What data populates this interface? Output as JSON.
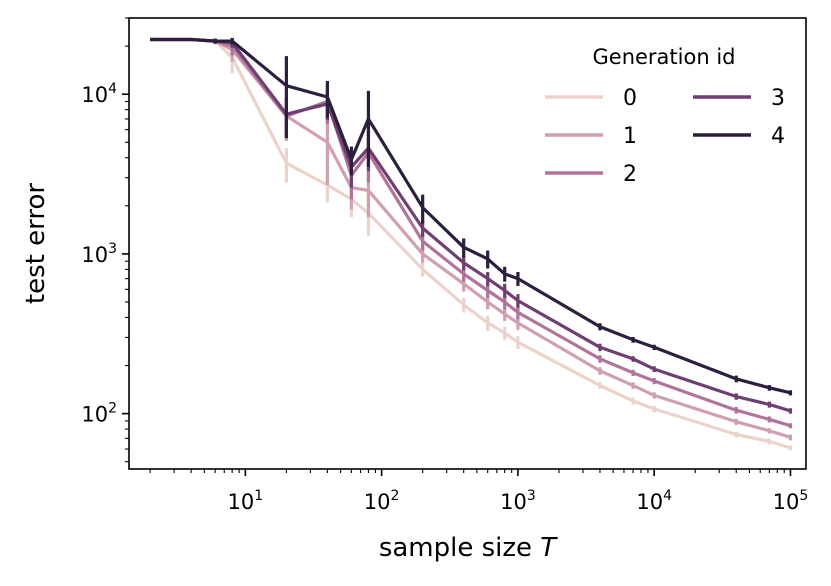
{
  "chart_data": {
    "type": "line",
    "title": "",
    "xlabel": "sample size",
    "xlabel_var": "T",
    "ylabel": "test error",
    "xscale": "log",
    "yscale": "log",
    "xlim": [
      1.4,
      130000
    ],
    "ylim": [
      45,
      30000
    ],
    "x_ticks": [
      {
        "base": "10",
        "exp": "1",
        "value": 10
      },
      {
        "base": "10",
        "exp": "2",
        "value": 100
      },
      {
        "base": "10",
        "exp": "3",
        "value": 1000
      },
      {
        "base": "10",
        "exp": "4",
        "value": 10000
      },
      {
        "base": "10",
        "exp": "5",
        "value": 100000
      }
    ],
    "y_ticks": [
      {
        "base": "10",
        "exp": "2",
        "value": 100
      },
      {
        "base": "10",
        "exp": "3",
        "value": 1000
      },
      {
        "base": "10",
        "exp": "4",
        "value": 10000
      }
    ],
    "legend_title": "Generation id",
    "legend_position": "top-right",
    "x": [
      2,
      4,
      6,
      8,
      20,
      40,
      60,
      80,
      200,
      400,
      600,
      800,
      1000,
      4000,
      7000,
      10000,
      40000,
      70000,
      100000
    ],
    "series": [
      {
        "name": "0",
        "color": "#ebd2cb",
        "values": [
          22000,
          22000,
          21500,
          17000,
          3700,
          2700,
          2200,
          1800,
          800,
          480,
          370,
          320,
          280,
          150,
          120,
          107,
          74,
          67,
          61
        ],
        "errors": [
          0,
          0,
          800,
          3500,
          900,
          600,
          500,
          500,
          80,
          50,
          40,
          30,
          25,
          8,
          6,
          5,
          3,
          3,
          2
        ]
      },
      {
        "name": "1",
        "color": "#d0a0ae",
        "values": [
          22000,
          22000,
          21500,
          19000,
          7300,
          5000,
          2600,
          2500,
          1000,
          650,
          500,
          420,
          370,
          185,
          150,
          130,
          89,
          78,
          71
        ],
        "errors": [
          0,
          0,
          800,
          3000,
          2200,
          2300,
          700,
          800,
          120,
          70,
          50,
          40,
          35,
          10,
          7,
          6,
          4,
          3,
          3
        ]
      },
      {
        "name": "2",
        "color": "#b0749a",
        "values": [
          22000,
          22000,
          21500,
          20000,
          7300,
          9000,
          3100,
          4300,
          1200,
          750,
          590,
          500,
          430,
          220,
          180,
          160,
          105,
          92,
          84
        ],
        "errors": [
          0,
          0,
          800,
          2500,
          2000,
          2500,
          900,
          1500,
          150,
          80,
          60,
          50,
          40,
          12,
          8,
          7,
          5,
          4,
          3
        ]
      },
      {
        "name": "3",
        "color": "#6e3f70",
        "values": [
          22000,
          22000,
          21500,
          21000,
          7500,
          8700,
          3500,
          4600,
          1450,
          880,
          700,
          590,
          510,
          260,
          220,
          190,
          128,
          114,
          104
        ],
        "errors": [
          0,
          0,
          800,
          1500,
          2000,
          1800,
          900,
          1300,
          170,
          90,
          70,
          60,
          50,
          14,
          9,
          8,
          6,
          5,
          4
        ]
      },
      {
        "name": "4",
        "color": "#2c1e3d",
        "values": [
          22000,
          22000,
          21500,
          21500,
          11300,
          9600,
          3900,
          7000,
          1950,
          1100,
          930,
          750,
          700,
          350,
          290,
          260,
          165,
          145,
          135
        ],
        "errors": [
          0,
          0,
          800,
          1000,
          6000,
          2500,
          800,
          3500,
          400,
          150,
          120,
          80,
          70,
          18,
          12,
          10,
          8,
          6,
          5
        ]
      }
    ]
  }
}
